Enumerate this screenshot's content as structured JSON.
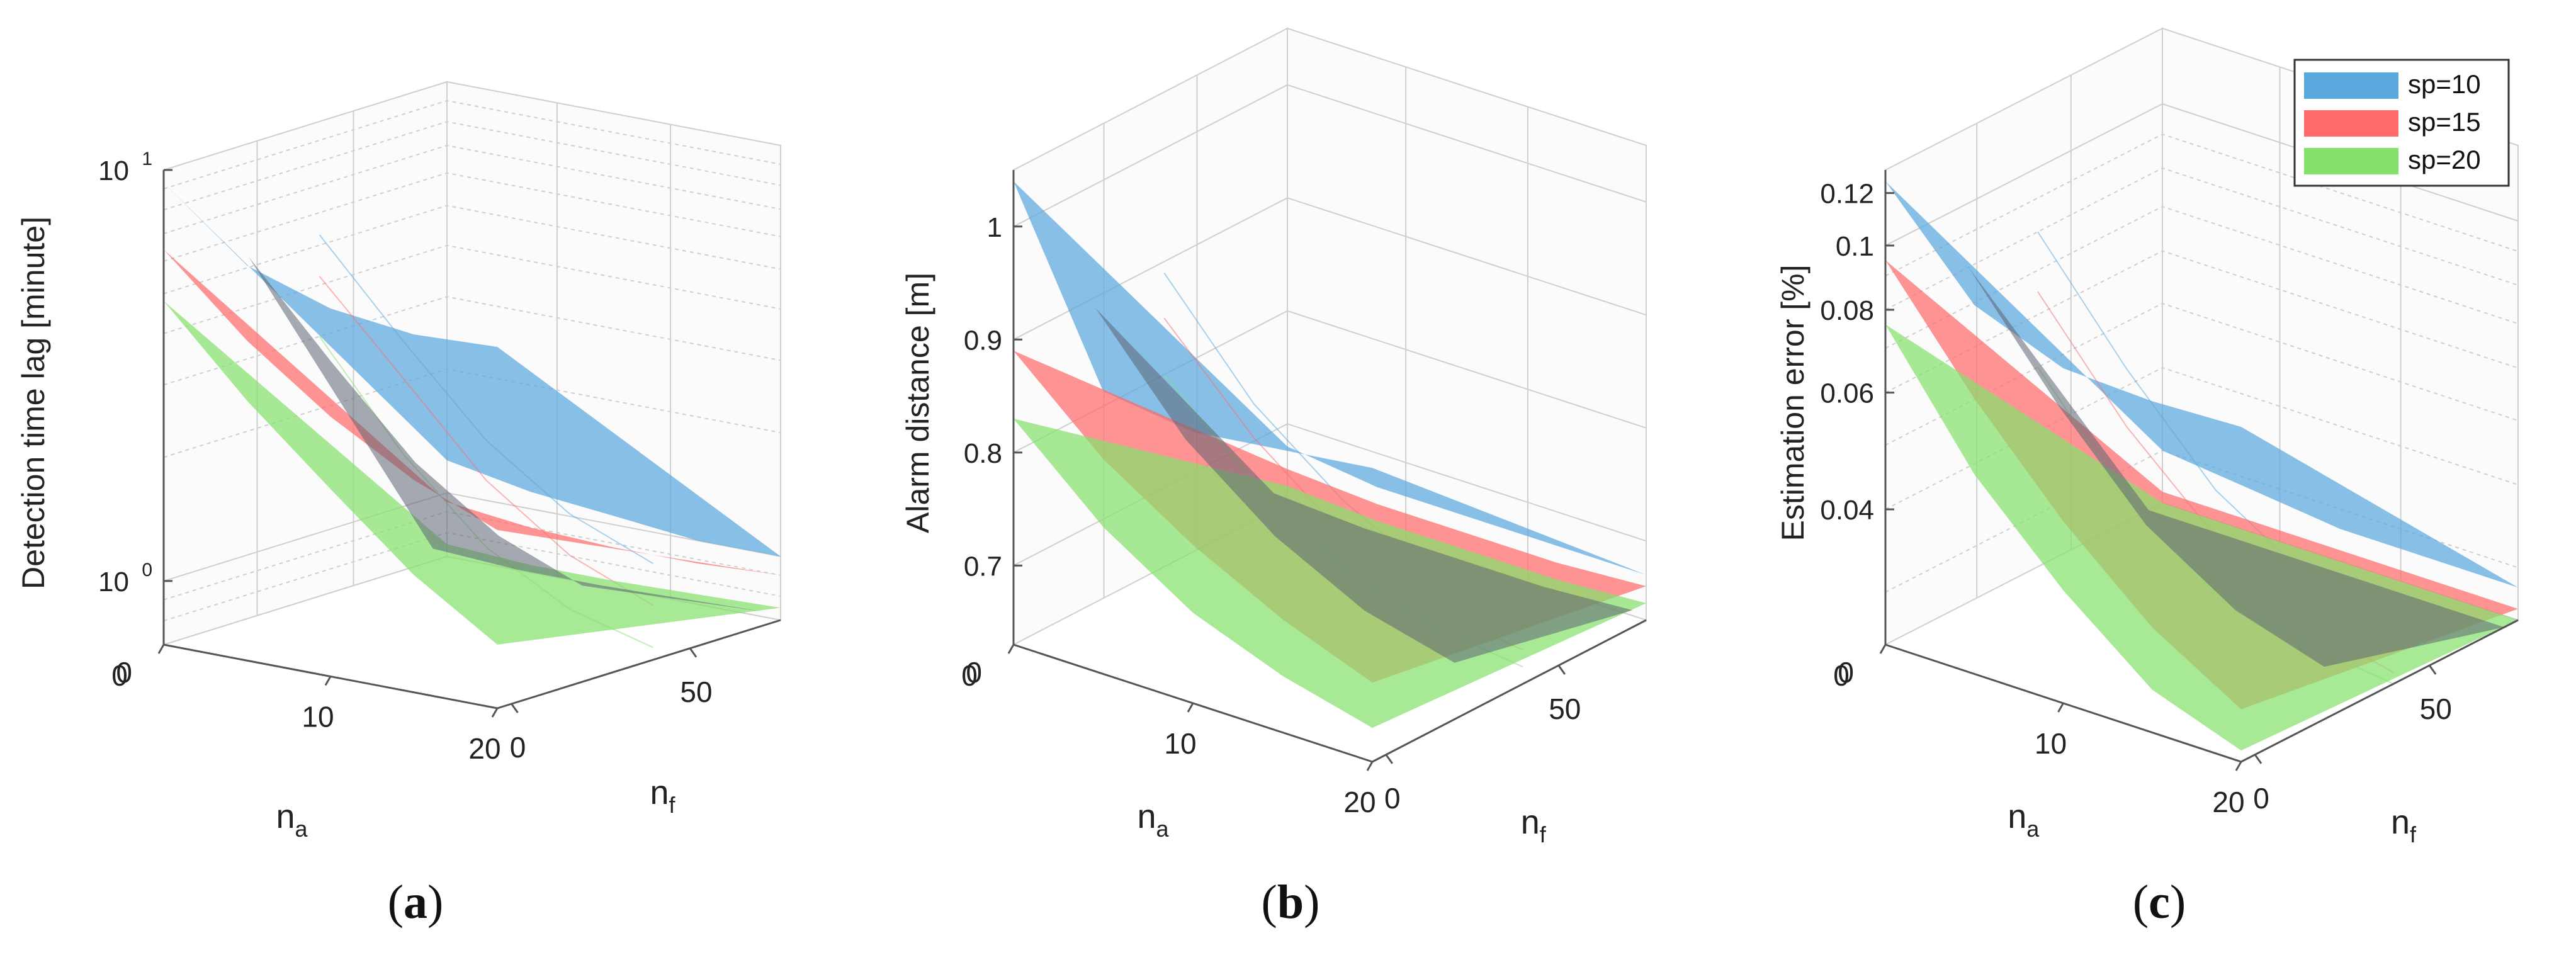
{
  "figure_captions": [
    "a",
    "b",
    "c"
  ],
  "colors": {
    "sp10": "#5aa8de",
    "sp15": "#ff6b6b",
    "sp20": "#86e06c",
    "overlap_dark": "#5d6472",
    "overlap_orange": "#e3703c",
    "overlap_purple": "#8a6fa7",
    "axis": "#555555",
    "grid": "#cfcfcf"
  },
  "legend": [
    "sp=10",
    "sp=15",
    "sp=20"
  ],
  "chart_data": [
    {
      "type": "surface3d",
      "panel": "a",
      "title": "",
      "zlabel": "Detection time lag [minute]",
      "xlabel": "n_a",
      "ylabel": "n_f",
      "zscale": "log",
      "zlim": [
        0.7,
        10
      ],
      "x_ticks": [
        "0",
        "10",
        "20"
      ],
      "y_ticks": [
        "0",
        "50"
      ],
      "z_tick_labels": [
        {
          "value": 1,
          "base": "10",
          "exp": "0"
        },
        {
          "value": 10,
          "base": "10",
          "exp": "1"
        }
      ],
      "series": [
        {
          "name": "sp=10",
          "front_edge_z": [
            9.3,
            6.4,
            5.5,
            5.2,
            5.3
          ],
          "back_edge_z": [
            5.3,
            3.2,
            2.0,
            1.45,
            1.2
          ],
          "floor_z": [
            1.2,
            1.1,
            1.05,
            1.0,
            1.0
          ]
        },
        {
          "name": "sp=15",
          "front_edge_z": [
            6.4,
            4.2,
            3.0,
            2.3,
            1.9
          ],
          "back_edge_z": [
            4.2,
            2.6,
            1.6,
            1.15,
            0.95
          ],
          "floor_z": [
            0.95,
            0.9,
            0.88,
            0.88,
            0.9
          ]
        },
        {
          "name": "sp=20",
          "front_edge_z": [
            4.8,
            3.0,
            2.0,
            1.35,
            1.0
          ],
          "back_edge_z": [
            3.0,
            1.7,
            1.1,
            0.85,
            0.75
          ],
          "floor_z": [
            0.75,
            0.73,
            0.73,
            0.74,
            0.75
          ]
        }
      ]
    },
    {
      "type": "surface3d",
      "panel": "b",
      "title": "",
      "zlabel": "Alarm distance [m]",
      "xlabel": "n_a",
      "ylabel": "n_f",
      "zlim": [
        0.63,
        1.05
      ],
      "x_ticks": [
        "0",
        "10",
        "20"
      ],
      "y_ticks": [
        "0",
        "50"
      ],
      "z_ticks": [
        "0.7",
        "0.8",
        "0.9",
        "1"
      ],
      "series": [
        {
          "name": "sp=10",
          "front_edge_z": [
            1.04,
            0.88,
            0.87,
            0.88,
            0.89
          ],
          "back_edge_z": [
            0.89,
            0.8,
            0.74,
            0.7,
            0.68
          ],
          "floor_z": [
            0.68,
            0.67,
            0.67,
            0.67,
            0.67
          ]
        },
        {
          "name": "sp=15",
          "front_edge_z": [
            0.89,
            0.82,
            0.77,
            0.73,
            0.7
          ],
          "back_edge_z": [
            0.85,
            0.77,
            0.71,
            0.67,
            0.66
          ],
          "floor_z": [
            0.66,
            0.655,
            0.655,
            0.655,
            0.66
          ]
        },
        {
          "name": "sp=20",
          "front_edge_z": [
            0.83,
            0.76,
            0.71,
            0.68,
            0.66
          ],
          "back_edge_z": [
            0.8,
            0.73,
            0.68,
            0.655,
            0.645
          ],
          "floor_z": [
            0.645,
            0.64,
            0.64,
            0.64,
            0.645
          ]
        }
      ]
    },
    {
      "type": "surface3d",
      "panel": "c",
      "title": "",
      "zlabel": "Estimation error [%]",
      "xlabel": "n_a",
      "ylabel": "n_f",
      "zscale": "log",
      "zlim": [
        0.025,
        0.13
      ],
      "x_ticks": [
        "0",
        "10",
        "20"
      ],
      "y_ticks": [
        "0",
        "50"
      ],
      "z_ticks": [
        "0.04",
        "0.06",
        "0.08",
        "0.1",
        "0.12"
      ],
      "series": [
        {
          "name": "sp=10",
          "front_edge_z": [
            0.125,
            0.09,
            0.08,
            0.079,
            0.08
          ],
          "back_edge_z": [
            0.08,
            0.055,
            0.04,
            0.033,
            0.03
          ],
          "floor_z": [
            0.03,
            0.029,
            0.028,
            0.028,
            0.028
          ]
        },
        {
          "name": "sp=15",
          "front_edge_z": [
            0.095,
            0.065,
            0.047,
            0.036,
            0.03
          ],
          "back_edge_z": [
            0.065,
            0.045,
            0.034,
            0.028,
            0.026
          ],
          "floor_z": [
            0.026,
            0.026,
            0.026,
            0.026,
            0.026
          ]
        },
        {
          "name": "sp=20",
          "front_edge_z": [
            0.076,
            0.05,
            0.037,
            0.029,
            0.026
          ],
          "back_edge_z": [
            0.05,
            0.035,
            0.028,
            0.026,
            0.025
          ],
          "floor_z": [
            0.025,
            0.025,
            0.025,
            0.025,
            0.025
          ]
        }
      ]
    }
  ]
}
